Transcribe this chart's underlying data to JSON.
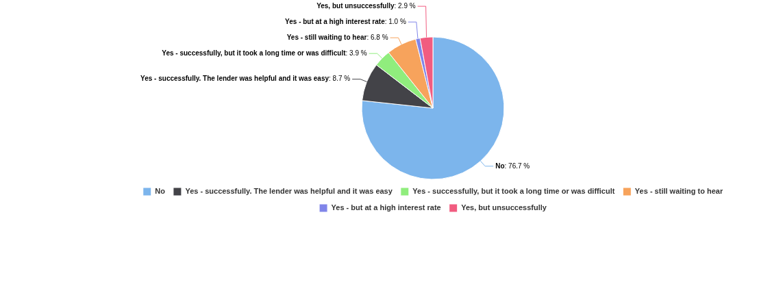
{
  "chart_data": {
    "type": "pie",
    "categories": [
      "No",
      "Yes - successfully. The lender was helpful and it was easy",
      "Yes - successfully, but it took a long time or was difficult",
      "Yes - still waiting to hear",
      "Yes - but at a high interest rate",
      "Yes, but unsuccessfully"
    ],
    "values": [
      76.7,
      8.7,
      3.9,
      6.8,
      1.0,
      2.9
    ],
    "colors": [
      "#7cb5ec",
      "#434348",
      "#90ed7d",
      "#f7a35c",
      "#8085e9",
      "#f15c80"
    ],
    "value_labels": [
      ": 76.7 %",
      ": 8.7 %",
      ": 3.9 %",
      ": 6.8 %",
      ": 1.0 %",
      ": 2.9 %"
    ],
    "legend": "bottom"
  }
}
